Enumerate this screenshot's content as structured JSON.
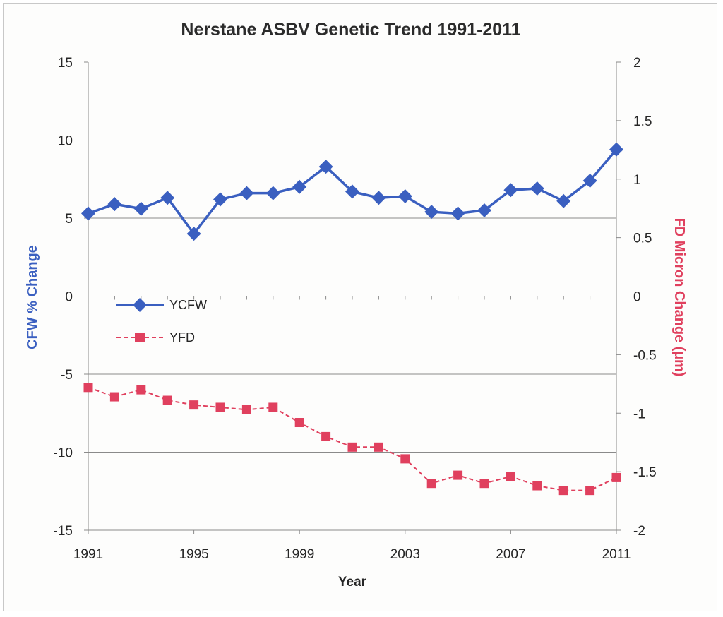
{
  "chart_data": {
    "type": "line",
    "title": "Nerstane ASBV Genetic Trend 1991-2011",
    "xlabel": "Year",
    "ylabel_left": "CFW % Change",
    "ylabel_right": "FD Micron Change (µm)",
    "x": [
      1991,
      1992,
      1993,
      1994,
      1995,
      1996,
      1997,
      1998,
      1999,
      2000,
      2001,
      2002,
      2003,
      2004,
      2005,
      2006,
      2007,
      2008,
      2009,
      2010,
      2011
    ],
    "x_ticks": [
      "1991",
      "1995",
      "1999",
      "2003",
      "2007",
      "2011"
    ],
    "ylim_left": [
      -15,
      15
    ],
    "yticks_left": [
      "15",
      "10",
      "5",
      "0",
      "-5",
      "-10",
      "-15"
    ],
    "ylim_right": [
      -2,
      2
    ],
    "yticks_right": [
      "2",
      "1.5",
      "1",
      "0.5",
      "0",
      "-0.5",
      "-1",
      "-1.5",
      "-2"
    ],
    "grid": "horizontal",
    "legend_position": "center-left",
    "series": [
      {
        "name": "YCFW",
        "axis": "left",
        "color": "#3a5fc0",
        "marker": "diamond",
        "line": "solid",
        "values": [
          5.3,
          5.9,
          5.6,
          6.3,
          4.0,
          6.2,
          6.6,
          6.6,
          7.0,
          8.3,
          6.7,
          6.3,
          6.4,
          5.4,
          5.3,
          5.5,
          6.8,
          6.9,
          6.1,
          7.4,
          9.4
        ]
      },
      {
        "name": "YFD",
        "axis": "right",
        "color": "#e0405e",
        "marker": "square",
        "line": "dashed",
        "values": [
          -0.78,
          -0.86,
          -0.8,
          -0.89,
          -0.93,
          -0.95,
          -0.97,
          -0.95,
          -1.08,
          -1.2,
          -1.29,
          -1.29,
          -1.39,
          -1.6,
          -1.53,
          -1.6,
          -1.54,
          -1.62,
          -1.66,
          -1.66,
          -1.55
        ]
      }
    ]
  }
}
